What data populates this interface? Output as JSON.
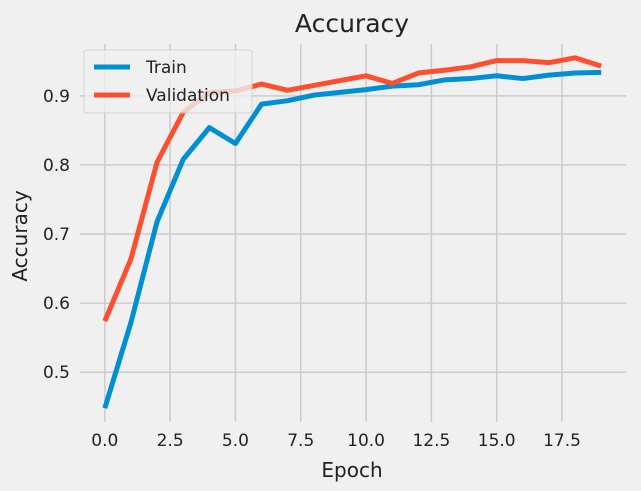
{
  "chart_data": {
    "type": "line",
    "title": "Accuracy",
    "xlabel": "Epoch",
    "ylabel": "Accuracy",
    "x": [
      0,
      1,
      2,
      3,
      4,
      5,
      6,
      7,
      8,
      9,
      10,
      11,
      12,
      13,
      14,
      15,
      16,
      17,
      18,
      19
    ],
    "xlim": [
      -0.95,
      19.95
    ],
    "ylim": [
      0.428,
      0.975
    ],
    "xticks": [
      0.0,
      2.5,
      5.0,
      7.5,
      10.0,
      12.5,
      15.0,
      17.5
    ],
    "xtick_labels": [
      "0.0",
      "2.5",
      "5.0",
      "7.5",
      "10.0",
      "12.5",
      "15.0",
      "17.5"
    ],
    "yticks": [
      0.5,
      0.6,
      0.7,
      0.8,
      0.9
    ],
    "ytick_labels": [
      "0.5",
      "0.6",
      "0.7",
      "0.8",
      "0.9"
    ],
    "grid": true,
    "legend_position": "top-left",
    "series": [
      {
        "name": "Train",
        "color": "#008fd5",
        "values": [
          0.448,
          0.572,
          0.718,
          0.808,
          0.854,
          0.831,
          0.888,
          0.893,
          0.901,
          0.905,
          0.909,
          0.914,
          0.916,
          0.923,
          0.925,
          0.929,
          0.925,
          0.93,
          0.933,
          0.934
        ]
      },
      {
        "name": "Validation",
        "color": "#fc4f30",
        "values": [
          0.574,
          0.664,
          0.804,
          0.876,
          0.905,
          0.907,
          0.917,
          0.908,
          0.915,
          0.922,
          0.929,
          0.918,
          0.933,
          0.937,
          0.942,
          0.951,
          0.951,
          0.948,
          0.955,
          0.943
        ]
      }
    ]
  }
}
